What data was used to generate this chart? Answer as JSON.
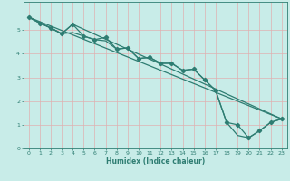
{
  "xlabel": "Humidex (Indice chaleur)",
  "xlim": [
    -0.5,
    23.5
  ],
  "ylim": [
    0,
    6.2
  ],
  "xticks": [
    0,
    1,
    2,
    3,
    4,
    5,
    6,
    7,
    8,
    9,
    10,
    11,
    12,
    13,
    14,
    15,
    16,
    17,
    18,
    19,
    20,
    21,
    22,
    23
  ],
  "yticks": [
    0,
    1,
    2,
    3,
    4,
    5
  ],
  "bg_color": "#c8ece8",
  "line_color": "#2e7d72",
  "grid_color": "#e8f8f6",
  "line1_x": [
    0,
    1,
    2,
    3,
    4,
    5,
    6,
    7,
    8,
    9,
    10,
    11,
    12,
    13,
    14,
    15,
    16,
    17,
    18,
    19,
    20,
    21,
    22,
    23
  ],
  "line1_y": [
    5.55,
    5.3,
    5.1,
    4.85,
    5.25,
    4.75,
    4.6,
    4.7,
    4.2,
    4.25,
    3.8,
    3.85,
    3.6,
    3.6,
    3.3,
    3.35,
    2.9,
    2.45,
    1.1,
    1.0,
    0.45,
    0.75,
    1.1,
    1.25
  ],
  "line2_x": [
    0,
    1,
    2,
    3,
    4,
    5,
    6,
    7,
    8,
    9,
    10,
    11,
    12,
    13,
    14,
    15,
    16,
    17,
    18,
    19,
    20,
    21,
    22,
    23
  ],
  "line2_y": [
    5.55,
    5.3,
    5.1,
    4.85,
    4.9,
    4.75,
    4.6,
    4.55,
    4.2,
    4.25,
    3.8,
    3.85,
    3.6,
    3.6,
    3.3,
    3.35,
    2.9,
    2.45,
    1.1,
    0.55,
    0.45,
    0.75,
    1.1,
    1.25
  ],
  "line3_x": [
    0,
    3,
    4,
    23
  ],
  "line3_y": [
    5.55,
    4.85,
    5.25,
    1.25
  ],
  "line4_x": [
    0,
    23
  ],
  "line4_y": [
    5.55,
    1.25
  ]
}
